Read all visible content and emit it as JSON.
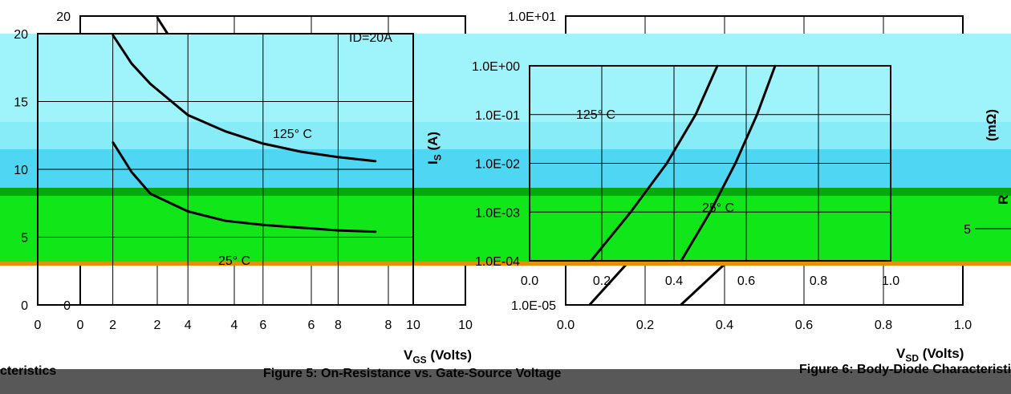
{
  "charts": {
    "fig5": {
      "title": "Figure 5: On-Resistance vs. Gate-Source Voltage",
      "xlabel": "V",
      "xlabel_sub": "GS",
      "xlabel_unit": " (Volts)",
      "annotations": {
        "id": "I",
        "id_sub": "D",
        "id_val": "=20A",
        "hot": "125° C",
        "cold": "25° C"
      }
    },
    "fig6": {
      "title": "Figure 6: Body-Diode Characteristics",
      "xlabel": "V",
      "xlabel_sub": "SD",
      "xlabel_unit": " (Volts)",
      "ylabel": "I",
      "ylabel_sub": "S",
      "ylabel_unit": " (A)",
      "annotations": {
        "hot": "125° C",
        "cold": "25° C"
      }
    },
    "left_fragment": {
      "title": "cteristics"
    },
    "right_fragment": {
      "ylabel": "(mΩ)",
      "ylabel_prefix": "R"
    }
  },
  "chart_data": [
    {
      "type": "line",
      "title": "Figure 5: On-Resistance vs. Gate-Source Voltage",
      "xlabel": "VGS (Volts)",
      "ylabel": "RDS(ON) (mΩ)",
      "xlim": [
        0,
        10
      ],
      "ylim": [
        0,
        20
      ],
      "xticks": [
        "0",
        "2",
        "4",
        "6",
        "8",
        "10"
      ],
      "yticks": [
        "0",
        "5",
        "10",
        "15",
        "20"
      ],
      "grid": true,
      "series": [
        {
          "name": "125° C",
          "x": [
            2.0,
            2.5,
            3,
            4,
            5,
            6,
            7,
            8,
            9
          ],
          "y": [
            19.9,
            17.8,
            16.3,
            14.0,
            12.8,
            11.9,
            11.3,
            10.9,
            10.6
          ]
        },
        {
          "name": "25° C",
          "x": [
            2.0,
            2.5,
            3,
            4,
            5,
            6,
            7,
            8,
            9
          ],
          "y": [
            12.0,
            9.8,
            8.2,
            6.9,
            6.2,
            5.9,
            5.7,
            5.5,
            5.4
          ]
        }
      ]
    },
    {
      "type": "line",
      "title": "Figure 6: Body-Diode Characteristics",
      "xlabel": "VSD (Volts)",
      "ylabel": "IS (A)",
      "xlim": [
        0,
        1.0
      ],
      "ylim": [
        1e-05,
        10
      ],
      "yscale": "log",
      "xticks": [
        "0.0",
        "0.2",
        "0.4",
        "0.6",
        "0.8",
        "1.0"
      ],
      "yticks": [
        "1.0E-05",
        "1.0E-04",
        "1.0E-03",
        "1.0E-02",
        "1.0E-01",
        "1.0E+00",
        "1.0E+01"
      ],
      "grid": true,
      "series": [
        {
          "name": "125° C",
          "x": [
            0.06,
            0.17,
            0.28,
            0.38,
            0.46,
            0.52
          ],
          "y": [
            1e-05,
            0.0001,
            0.001,
            0.01,
            0.1,
            1.0
          ]
        },
        {
          "name": "25° C",
          "x": [
            0.29,
            0.42,
            0.5,
            0.57,
            0.63,
            0.68
          ],
          "y": [
            1e-05,
            0.0001,
            0.001,
            0.01,
            0.1,
            1.0
          ]
        }
      ]
    }
  ]
}
